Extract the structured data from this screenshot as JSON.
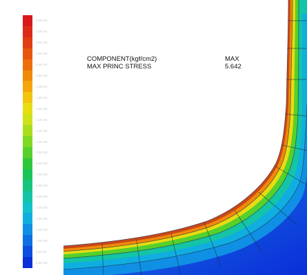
{
  "legend": {
    "levels": [
      {
        "color": "#d7191c",
        "label": "5.0E+01"
      },
      {
        "color": "#dc2a18",
        "label": "4.5E+01"
      },
      {
        "color": "#e23c12",
        "label": "4.0E+01"
      },
      {
        "color": "#e8560e",
        "label": "3.5E+01"
      },
      {
        "color": "#ec6f0b",
        "label": "3.0E+01"
      },
      {
        "color": "#f08a0a",
        "label": "2.5E+01"
      },
      {
        "color": "#f4a60a",
        "label": "2.0E+01"
      },
      {
        "color": "#f2c40d",
        "label": "1.8E+01"
      },
      {
        "color": "#e8dc12",
        "label": "1.6E+01"
      },
      {
        "color": "#cde21a",
        "label": "1.4E+01"
      },
      {
        "color": "#a8de1e",
        "label": "1.2E+01"
      },
      {
        "color": "#80d824",
        "label": "1.0E+01"
      },
      {
        "color": "#56d02c",
        "label": "9.0E+00"
      },
      {
        "color": "#2ec83a",
        "label": "8.0E+00"
      },
      {
        "color": "#1ac45a",
        "label": "7.0E+00"
      },
      {
        "color": "#16c480",
        "label": "6.0E+00"
      },
      {
        "color": "#14c4a6",
        "label": "5.0E+00"
      },
      {
        "color": "#12c2c8",
        "label": "4.0E+00"
      },
      {
        "color": "#10aee0",
        "label": "3.0E+00"
      },
      {
        "color": "#1090e4",
        "label": "2.0E+00"
      },
      {
        "color": "#0f70e4",
        "label": "1.0E+00"
      },
      {
        "color": "#0c4fe0",
        "label": "5.0E-01"
      },
      {
        "color": "#0a2ed8",
        "label": "0.0E+00"
      }
    ]
  },
  "info": {
    "component_label": "COMPONENT(kgf/cm2)",
    "component_value": "MAX",
    "stress_label": "MAX PRINC STRESS",
    "stress_value": "5.642"
  },
  "colors": {
    "band_red": "#d7191c",
    "band_orange": "#f08a0a",
    "band_yellow": "#e8dc12",
    "band_green": "#56d02c",
    "band_cyan": "#14c4a6",
    "band_lightblue": "#10aee0",
    "band_blue": "#1090e4",
    "band_deepblue": "#0a2ed8"
  }
}
